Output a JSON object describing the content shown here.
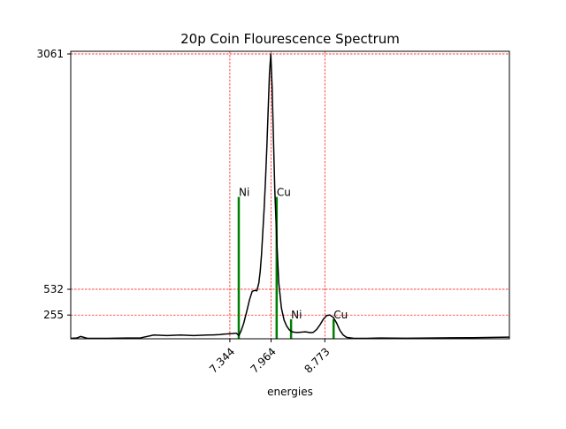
{
  "chart_data": {
    "type": "line",
    "title": "20p Coin Flourescence Spectrum",
    "xlabel": "energies",
    "ylabel": "",
    "xlim": [
      4.95,
      11.55
    ],
    "ylim": [
      0,
      3061
    ],
    "grid": false,
    "y_ticks": [
      255,
      532,
      3061
    ],
    "x_ticks": [
      {
        "value": 7.344,
        "label": "7.344"
      },
      {
        "value": 7.964,
        "label": "7.964"
      },
      {
        "value": 8.773,
        "label": "8.773"
      }
    ],
    "reference_lines": {
      "x": [
        7.344,
        7.964,
        8.773
      ],
      "y": [
        255,
        532,
        3061
      ]
    },
    "spectrum": {
      "x": [
        4.95,
        5.04,
        5.1,
        5.2,
        5.5,
        5.8,
        6.0,
        6.2,
        6.4,
        6.6,
        6.8,
        7.0,
        7.1,
        7.2,
        7.25,
        7.3,
        7.35,
        7.38,
        7.41,
        7.44,
        7.46,
        7.48,
        7.51,
        7.55,
        7.6,
        7.64,
        7.68,
        7.72,
        7.75,
        7.78,
        7.8,
        7.82,
        7.84,
        7.86,
        7.88,
        7.9,
        7.92,
        7.94,
        7.96,
        7.98,
        8.0,
        8.02,
        8.05,
        8.08,
        8.12,
        8.16,
        8.2,
        8.24,
        8.28,
        8.32,
        8.36,
        8.4,
        8.44,
        8.48,
        8.52,
        8.56,
        8.6,
        8.65,
        8.7,
        8.75,
        8.8,
        8.85,
        8.9,
        8.95,
        9.0,
        9.05,
        9.1,
        9.2,
        9.4,
        9.6,
        10.0,
        10.5,
        11.0,
        11.55
      ],
      "y": [
        5,
        8,
        25,
        5,
        5,
        8,
        10,
        40,
        35,
        40,
        35,
        40,
        42,
        45,
        50,
        52,
        55,
        56,
        58,
        60,
        48,
        35,
        80,
        160,
        300,
        420,
        510,
        520,
        515,
        600,
        720,
        900,
        1150,
        1400,
        1700,
        2050,
        2450,
        2850,
        3061,
        2700,
        2150,
        1600,
        1050,
        600,
        330,
        200,
        135,
        95,
        75,
        70,
        68,
        70,
        72,
        75,
        70,
        65,
        70,
        100,
        150,
        210,
        250,
        255,
        230,
        170,
        90,
        40,
        15,
        6,
        5,
        8,
        6,
        10,
        12,
        18
      ]
    },
    "emission_lines": [
      {
        "element": "Ni",
        "energy": 7.478,
        "height": 1525
      },
      {
        "element": "Cu",
        "energy": 8.048,
        "height": 1525
      },
      {
        "element": "Ni",
        "energy": 8.265,
        "height": 210
      },
      {
        "element": "Cu",
        "energy": 8.905,
        "height": 210
      }
    ],
    "colors": {
      "spectrum": "#000000",
      "reference_lines": "#ff0000",
      "emission_lines": "#008000",
      "axes": "#000000"
    }
  }
}
